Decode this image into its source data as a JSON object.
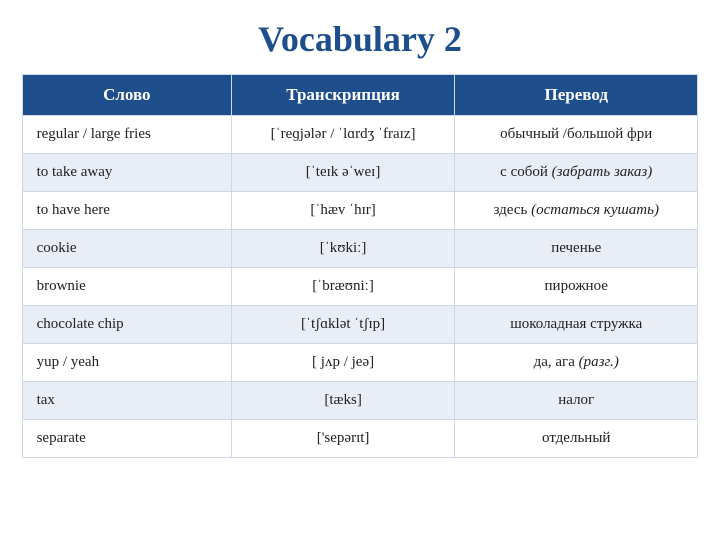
{
  "title": "Vocabulary 2",
  "columns": [
    "Слово",
    "Транскрипция",
    "Перевод"
  ],
  "col_widths": [
    "31%",
    "33%",
    "36%"
  ],
  "header_bg": "#1f4e8c",
  "header_fg": "#ffffff",
  "row_bg_odd": "#ffffff",
  "row_bg_even": "#e9edf6",
  "border_color": "#cfd6e4",
  "title_color": "#1f4e8c",
  "title_fontsize": 36,
  "cell_fontsize": 15,
  "header_fontsize": 17,
  "rows": [
    {
      "word": "regular  / large fries",
      "transcription": "[ˈreɡjələr  / ˈlɑrdʒ ˈfraɪz]",
      "translation": "обычный  /большой фри",
      "ital": ""
    },
    {
      "word": "to take away",
      "transcription": "[ˈteɪk əˈweɪ]",
      "translation": "с собой ",
      "ital": "(забрать заказ)"
    },
    {
      "word": "to have here",
      "transcription": "[ˈhæv ˈhɪr]",
      "translation": "здесь ",
      "ital": "(остаться кушать)"
    },
    {
      "word": "cookie",
      "transcription": "[ˈkʊkiː]",
      "translation": "печенье",
      "ital": ""
    },
    {
      "word": "brownie",
      "transcription": "[ˈbræʊniː]",
      "translation": "пирожное",
      "ital": ""
    },
    {
      "word": "chocolate chip",
      "transcription": "[ˈtʃɑklət ˈtʃɪp]",
      "translation": "шоколадная стружка",
      "ital": ""
    },
    {
      "word": "yup / yeah",
      "transcription": "[ jʌp / jeə]",
      "translation": "да, ага ",
      "ital": "(разг.)"
    },
    {
      "word": "tax",
      "transcription": "[tæks]",
      "translation": "налог",
      "ital": ""
    },
    {
      "word": "separate",
      "transcription": "['sepərɪt]",
      "translation": "отдельный",
      "ital": ""
    }
  ]
}
